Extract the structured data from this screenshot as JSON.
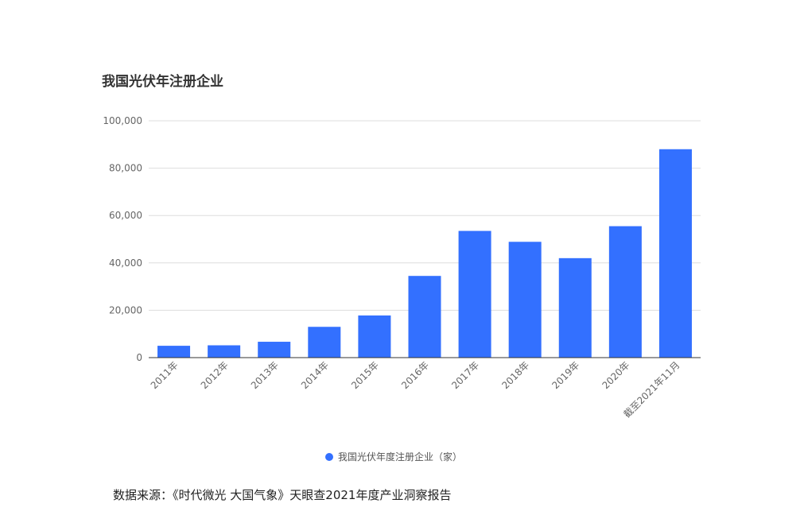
{
  "chart_data": {
    "type": "bar",
    "title": "我国光伏年注册企业",
    "categories": [
      "2011年",
      "2012年",
      "2013年",
      "2014年",
      "2015年",
      "2016年",
      "2017年",
      "2018年",
      "2019年",
      "2020年",
      "截至2021年11月"
    ],
    "series": [
      {
        "name": "我国光伏年度注册企业（家）",
        "values": [
          5000,
          5200,
          6700,
          13000,
          17800,
          34500,
          53500,
          48900,
          42000,
          55500,
          88000
        ]
      }
    ],
    "ylim": [
      0,
      100000
    ],
    "yticks": [
      "0",
      "20,000",
      "40,000",
      "60,000",
      "80,000",
      "100,000"
    ],
    "grid": true,
    "legend_position": "bottom-center",
    "bar_color": "#3370ff"
  },
  "source_note": "数据来源：《时代微光 大国气象》天眼查2021年度产业洞察报告"
}
